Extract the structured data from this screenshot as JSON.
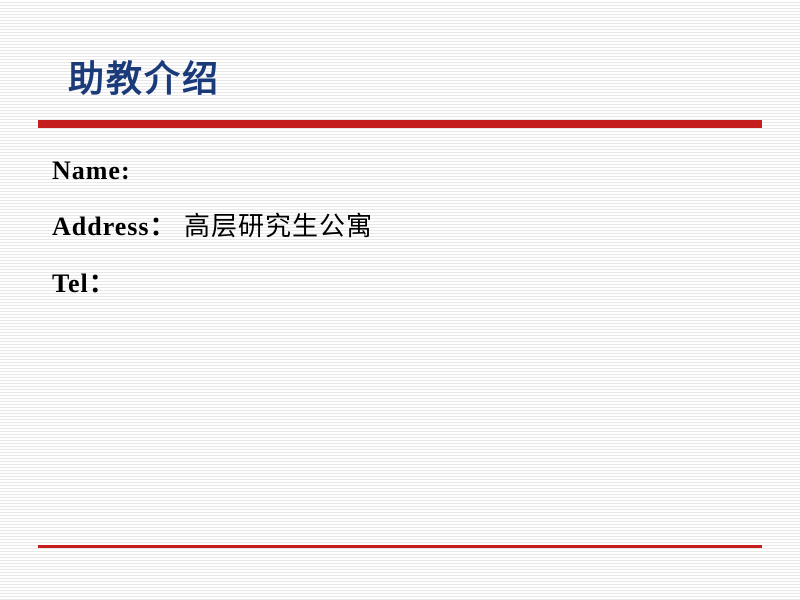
{
  "slide": {
    "title": "助教介绍",
    "fields": {
      "name_label": "Name:",
      "name_value": "",
      "address_label": "Address：",
      "address_value": "高层研究生公寓",
      "tel_label": "Tel：",
      "tel_value": ""
    }
  },
  "styling": {
    "title_color": "#1a3a7a",
    "title_fontsize": 36,
    "underline_color": "#c41e1e",
    "underline_height": 8,
    "content_fontsize": 26,
    "content_color": "#000000",
    "background_stripe_color": "#e8e8e8",
    "background_base_color": "#ffffff",
    "bottom_line_color": "#c41e1e",
    "bottom_line_height": 3
  }
}
